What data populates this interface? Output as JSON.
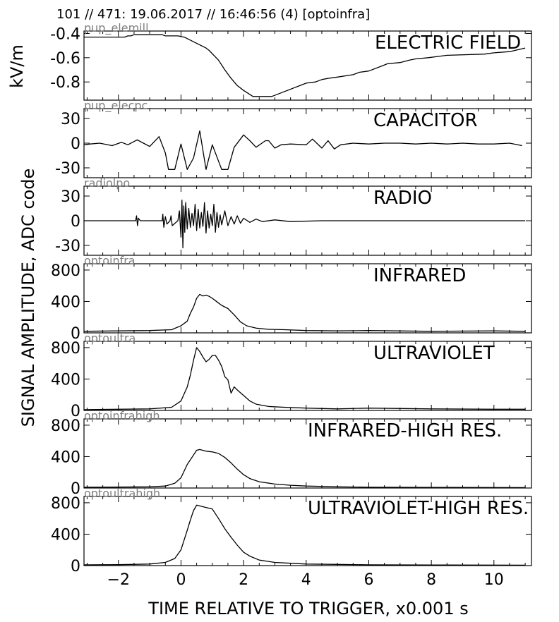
{
  "header": "101 // 471:   19.06.2017 // 16:46:56 (4)  [optoinfra]",
  "ylabel_top": "kV/m",
  "ylabel_main": "SIGNAL AMPLITUDE,  ADC code",
  "xlabel": "TIME RELATIVE TO TRIGGER,   x0.001 s",
  "chart_data": [
    {
      "type": "line",
      "title": "ELECTRIC FIELD",
      "channel": "pup_elemill",
      "ylim": [
        -0.95,
        -0.38
      ],
      "yticks": [
        -0.4,
        -0.6,
        -0.8
      ],
      "ytick_labels": [
        "-0.4",
        "-0.6",
        "-0.8"
      ],
      "x": [
        -3.1,
        -1.8,
        -1.7,
        -1.6,
        -1.5,
        -0.6,
        -0.5,
        -0.1,
        0.1,
        0.8,
        0.9,
        1.2,
        1.4,
        1.6,
        1.8,
        2.0,
        2.3,
        2.9,
        3.2,
        3.6,
        3.8,
        4.0,
        4.3,
        4.5,
        4.7,
        5.0,
        5.5,
        5.7,
        6.0,
        6.4,
        6.6,
        7.0,
        7.3,
        7.5,
        7.9,
        8.2,
        8.5,
        9.7,
        10.0,
        10.5,
        11.0
      ],
      "y": [
        -0.43,
        -0.43,
        -0.42,
        -0.42,
        -0.41,
        -0.41,
        -0.42,
        -0.42,
        -0.43,
        -0.52,
        -0.54,
        -0.62,
        -0.7,
        -0.77,
        -0.83,
        -0.87,
        -0.92,
        -0.92,
        -0.89,
        -0.85,
        -0.83,
        -0.81,
        -0.8,
        -0.78,
        -0.77,
        -0.76,
        -0.74,
        -0.72,
        -0.71,
        -0.67,
        -0.65,
        -0.64,
        -0.62,
        -0.61,
        -0.6,
        -0.59,
        -0.58,
        -0.57,
        -0.56,
        -0.55,
        -0.52
      ]
    },
    {
      "type": "line",
      "title": "CAPACITOR",
      "channel": "pup_elecpc",
      "ylim": [
        -42,
        42
      ],
      "yticks": [
        30,
        0,
        -30
      ],
      "ytick_labels": [
        "30",
        "0",
        "-30"
      ],
      "x": [
        -3.1,
        -2.9,
        -2.6,
        -2.2,
        -1.9,
        -1.7,
        -1.4,
        -1.2,
        -1.0,
        -0.7,
        -0.5,
        -0.4,
        -0.2,
        0.0,
        0.2,
        0.4,
        0.6,
        0.8,
        1.0,
        1.3,
        1.5,
        1.7,
        2.0,
        2.2,
        2.4,
        2.7,
        2.8,
        3.0,
        3.2,
        3.5,
        4.0,
        4.2,
        4.5,
        4.7,
        4.9,
        5.1,
        5.5,
        6.0,
        6.5,
        7.0,
        7.5,
        8.0,
        8.5,
        9.0,
        9.5,
        10.0,
        10.5,
        10.9
      ],
      "y": [
        -2,
        -1,
        0,
        -3,
        1,
        -2,
        4,
        0,
        -4,
        8,
        -12,
        -32,
        -32,
        -1,
        -32,
        -18,
        15,
        -32,
        -2,
        -32,
        -32,
        -5,
        10,
        3,
        -5,
        3,
        3,
        -6,
        -2,
        -1,
        -2,
        5,
        -6,
        3,
        -7,
        -2,
        0,
        -1,
        0,
        0,
        -1,
        0,
        -1,
        0,
        -1,
        -1,
        0,
        -3
      ]
    },
    {
      "type": "line",
      "title": "RADIO",
      "channel": "radiolpo",
      "ylim": [
        -42,
        42
      ],
      "yticks": [
        30,
        0,
        -30
      ],
      "ytick_labels": [
        "30",
        "0",
        "-30"
      ],
      "x": [
        -3.1,
        -1.45,
        -1.42,
        -1.39,
        -1.36,
        -1.3,
        -0.6,
        -0.58,
        -0.55,
        -0.5,
        -0.45,
        -0.35,
        -0.32,
        -0.28,
        -0.1,
        -0.05,
        0.0,
        0.03,
        0.06,
        0.09,
        0.12,
        0.15,
        0.2,
        0.25,
        0.3,
        0.35,
        0.4,
        0.45,
        0.5,
        0.55,
        0.6,
        0.65,
        0.7,
        0.75,
        0.8,
        0.85,
        0.9,
        0.95,
        1.0,
        1.05,
        1.1,
        1.15,
        1.2,
        1.25,
        1.3,
        1.4,
        1.5,
        1.6,
        1.7,
        1.8,
        1.9,
        2.0,
        2.2,
        2.4,
        2.6,
        3.0,
        3.5,
        4.5,
        11.0
      ],
      "y": [
        0,
        0,
        6,
        -6,
        3,
        0,
        0,
        8,
        -8,
        5,
        -4,
        0,
        6,
        -6,
        0,
        12,
        -20,
        25,
        -33,
        18,
        -14,
        22,
        -10,
        15,
        -8,
        9,
        -6,
        20,
        -12,
        14,
        -9,
        10,
        -7,
        22,
        -15,
        12,
        -9,
        8,
        -6,
        20,
        -14,
        10,
        -8,
        7,
        -5,
        12,
        -6,
        5,
        -4,
        6,
        -3,
        3,
        -2,
        2,
        -1,
        1,
        -1,
        0,
        0
      ]
    },
    {
      "type": "line",
      "title": "INFRARED",
      "channel": "optoinfra",
      "ylim": [
        0,
        880
      ],
      "yticks": [
        800,
        400,
        0
      ],
      "ytick_labels": [
        "800",
        "400",
        "0"
      ],
      "x": [
        -3.1,
        -2.0,
        -1.0,
        -0.3,
        0.0,
        0.2,
        0.3,
        0.4,
        0.5,
        0.6,
        0.7,
        0.8,
        0.9,
        1.0,
        1.1,
        1.2,
        1.3,
        1.5,
        1.7,
        1.9,
        2.1,
        2.4,
        2.8,
        3.3,
        4.0,
        5.0,
        6.0,
        8.0,
        10.0,
        11.0
      ],
      "y": [
        20,
        25,
        30,
        40,
        90,
        150,
        250,
        330,
        440,
        490,
        470,
        480,
        465,
        440,
        410,
        380,
        350,
        310,
        230,
        140,
        90,
        60,
        45,
        40,
        30,
        25,
        30,
        20,
        25,
        20
      ]
    },
    {
      "type": "line",
      "title": "ULTRAVIOLET",
      "channel": "optoultra",
      "ylim": [
        0,
        880
      ],
      "yticks": [
        800,
        400,
        0
      ],
      "ytick_labels": [
        "800",
        "400",
        "0"
      ],
      "x": [
        -3.1,
        -2.0,
        -1.0,
        -0.3,
        0.0,
        0.2,
        0.3,
        0.4,
        0.5,
        0.6,
        0.7,
        0.8,
        0.9,
        1.0,
        1.1,
        1.2,
        1.3,
        1.4,
        1.5,
        1.6,
        1.7,
        1.8,
        2.0,
        2.2,
        2.4,
        2.8,
        3.3,
        4.0,
        5.0,
        6.0,
        8.0,
        10.0,
        11.0
      ],
      "y": [
        10,
        15,
        20,
        40,
        120,
        300,
        450,
        640,
        800,
        750,
        680,
        620,
        650,
        700,
        700,
        640,
        560,
        430,
        390,
        220,
        300,
        260,
        190,
        120,
        80,
        50,
        40,
        30,
        20,
        30,
        20,
        15,
        15
      ]
    },
    {
      "type": "line",
      "title": "INFRARED-HIGH RES.",
      "channel": "optoinfrahigh",
      "ylim": [
        0,
        880
      ],
      "yticks": [
        800,
        400,
        0
      ],
      "ytick_labels": [
        "800",
        "400",
        "0"
      ],
      "x": [
        -3.1,
        -2.0,
        -1.0,
        -0.5,
        -0.2,
        0.0,
        0.2,
        0.4,
        0.5,
        0.6,
        0.8,
        1.0,
        1.2,
        1.4,
        1.6,
        1.8,
        2.0,
        2.2,
        2.5,
        3.0,
        3.5,
        4.0,
        5.0,
        6.0,
        8.0,
        11.0
      ],
      "y": [
        10,
        12,
        15,
        25,
        60,
        130,
        300,
        420,
        480,
        490,
        470,
        460,
        440,
        390,
        320,
        240,
        170,
        120,
        80,
        50,
        35,
        25,
        15,
        10,
        8,
        5
      ]
    },
    {
      "type": "line",
      "title": "ULTRAVIOLET-HIGH RES.",
      "channel": "optoultrahigh",
      "ylim": [
        0,
        880
      ],
      "yticks": [
        800,
        400,
        0
      ],
      "ytick_labels": [
        "800",
        "400",
        "0"
      ],
      "x": [
        -3.1,
        -2.0,
        -1.0,
        -0.5,
        -0.2,
        0.0,
        0.2,
        0.3,
        0.4,
        0.5,
        0.6,
        0.8,
        1.0,
        1.2,
        1.4,
        1.6,
        1.8,
        2.0,
        2.2,
        2.5,
        3.0,
        3.5,
        4.0,
        5.0,
        6.0,
        8.0,
        11.0
      ],
      "y": [
        10,
        12,
        20,
        40,
        90,
        200,
        450,
        580,
        700,
        770,
        760,
        740,
        720,
        600,
        470,
        360,
        260,
        170,
        120,
        70,
        40,
        30,
        20,
        15,
        10,
        8,
        5
      ]
    }
  ],
  "x_axis": {
    "xlim": [
      -3.1,
      11.2
    ],
    "ticks": [
      -2,
      0,
      2,
      4,
      6,
      8,
      10
    ],
    "tick_labels": [
      "−2",
      "0",
      "2",
      "4",
      "6",
      "8",
      "10"
    ]
  }
}
